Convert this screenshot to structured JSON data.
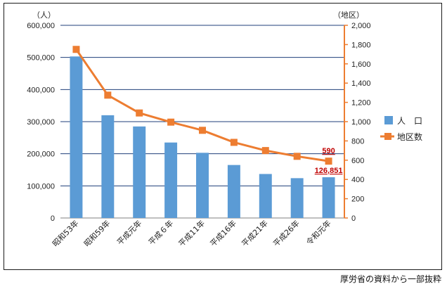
{
  "chart_data": {
    "type": "bar",
    "categories": [
      "昭和53年",
      "昭和59年",
      "平成元年",
      "平成６年",
      "平成11年",
      "平成16年",
      "平成21年",
      "平成26年",
      "令和元年"
    ],
    "series": [
      {
        "name": "人　口",
        "type": "bar",
        "axis": "left",
        "color": "#5b9bd5",
        "values": [
          503000,
          320000,
          285000,
          235000,
          203000,
          165000,
          137000,
          124000,
          126851
        ]
      },
      {
        "name": "地区数",
        "type": "line",
        "axis": "right",
        "color": "#ed7d31",
        "values": [
          1750,
          1275,
          1090,
          995,
          910,
          785,
          700,
          640,
          590
        ]
      }
    ],
    "y_left": {
      "unit": "（人）",
      "ylim": [
        0,
        600000
      ],
      "ticks": [
        "0",
        "100,000",
        "200,000",
        "300,000",
        "400,000",
        "500,000",
        "600,000"
      ]
    },
    "y_right": {
      "unit": "（地区）",
      "ylim": [
        0,
        2000
      ],
      "ticks": [
        "0",
        "200",
        "400",
        "600",
        "800",
        "1,000",
        "1,200",
        "1,400",
        "1,600",
        "1,800",
        "2,000"
      ]
    },
    "data_labels": [
      {
        "series": 1,
        "index": 8,
        "text": "590"
      },
      {
        "series": 0,
        "index": 8,
        "text": "126,851"
      }
    ],
    "grid": true,
    "legend": "right",
    "gridline_color": "#1f3f7a",
    "right_axis_color": "#ed7d31"
  },
  "source_note": "厚労省の資料から一部抜粋"
}
